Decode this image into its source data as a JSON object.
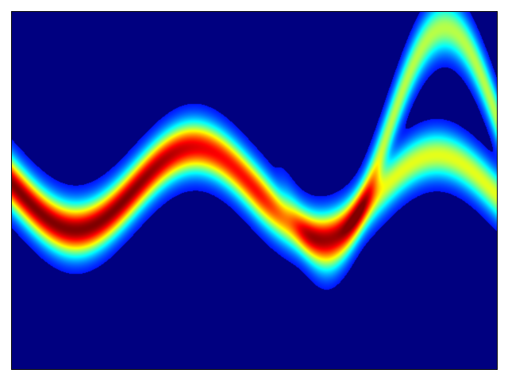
{
  "chart_data": {
    "type": "heatmap",
    "title": "",
    "xlabel": "",
    "ylabel": "",
    "colormap": "jet",
    "background_color": "#000080",
    "axes_ticks_visible": false,
    "grid": false,
    "legend": "none",
    "colorbar": false
  }
}
